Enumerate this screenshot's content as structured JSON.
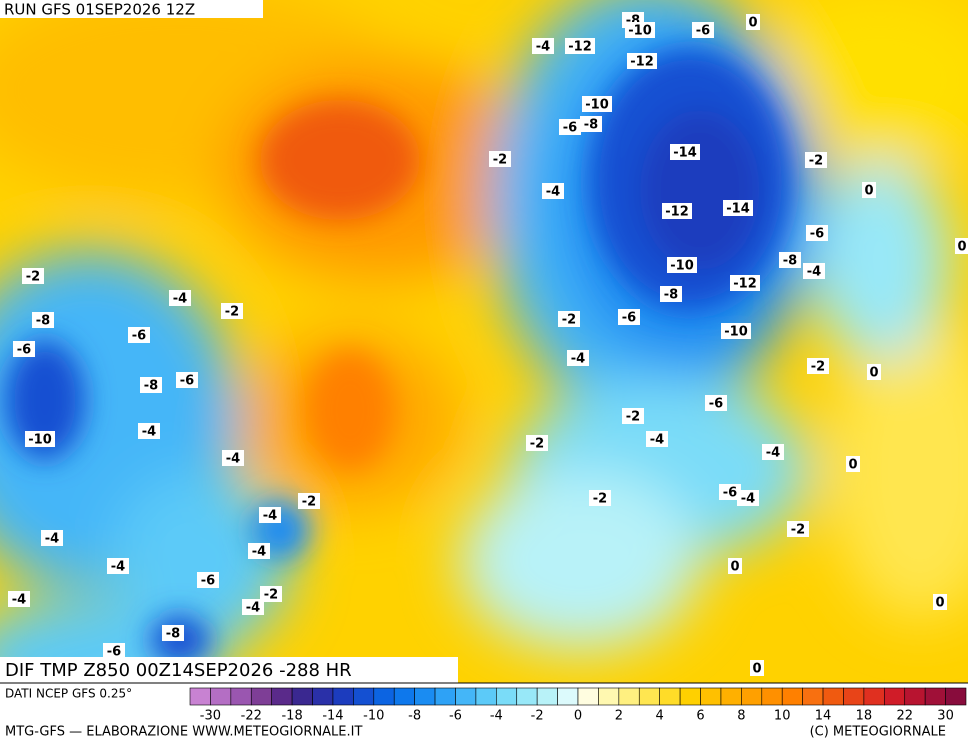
{
  "header": {
    "run": "RUN GFS 01SEP2026 12Z",
    "field": "DIF TMP Z850 00Z14SEP2026 -288 HR",
    "source": "DATI NCEP GFS 0.25°",
    "credit_left": "MTG-GFS — ELABORAZIONE WWW.METEOGIORNALE.IT",
    "credit_right": "(C) METEOGIORNALE"
  },
  "contour_labels": [
    -8,
    -10,
    -6,
    0,
    -4,
    -12,
    -12,
    -10,
    -6,
    -8,
    -14,
    -2,
    -2,
    -4,
    0,
    -12,
    -14,
    -6,
    0,
    -10,
    -8,
    -4,
    -12,
    -8,
    -2,
    -4,
    -2,
    -8,
    -2,
    -6,
    -10,
    -6,
    -6,
    -4,
    -2,
    0,
    -8,
    -6,
    -6,
    -2,
    -10,
    -4,
    -4,
    -2,
    -4,
    -4,
    0,
    -2,
    -2,
    -6,
    -4,
    -4,
    -2,
    -4,
    -4,
    -4,
    0,
    -6,
    -2,
    -4,
    -4,
    0,
    -8,
    -6,
    0
  ],
  "colorbar": {
    "ticks": [
      -30,
      -22,
      -18,
      -14,
      -10,
      -8,
      -6,
      -4,
      -2,
      0,
      2,
      4,
      6,
      8,
      10,
      14,
      18,
      22,
      30
    ],
    "colors": [
      "#c882d2",
      "#b46ec4",
      "#9a56b0",
      "#7e3e96",
      "#5a2a8a",
      "#3a2890",
      "#2a30a8",
      "#1c3cbe",
      "#1450d2",
      "#0c64e2",
      "#0e78ec",
      "#1a8cf2",
      "#2ea2f6",
      "#44b6f8",
      "#5ccaf8",
      "#7adcf8",
      "#98e8f8",
      "#b8f2f8",
      "#dcfafc",
      "#fffde0",
      "#fff8b0",
      "#fff080",
      "#ffe650",
      "#ffdc28",
      "#ffd000",
      "#ffc000",
      "#ffb000",
      "#ffa000",
      "#ff9000",
      "#ff8000",
      "#f87010",
      "#f05a10",
      "#e84418",
      "#e03020",
      "#d01c28",
      "#b81430",
      "#a01038",
      "#880c3c"
    ]
  }
}
